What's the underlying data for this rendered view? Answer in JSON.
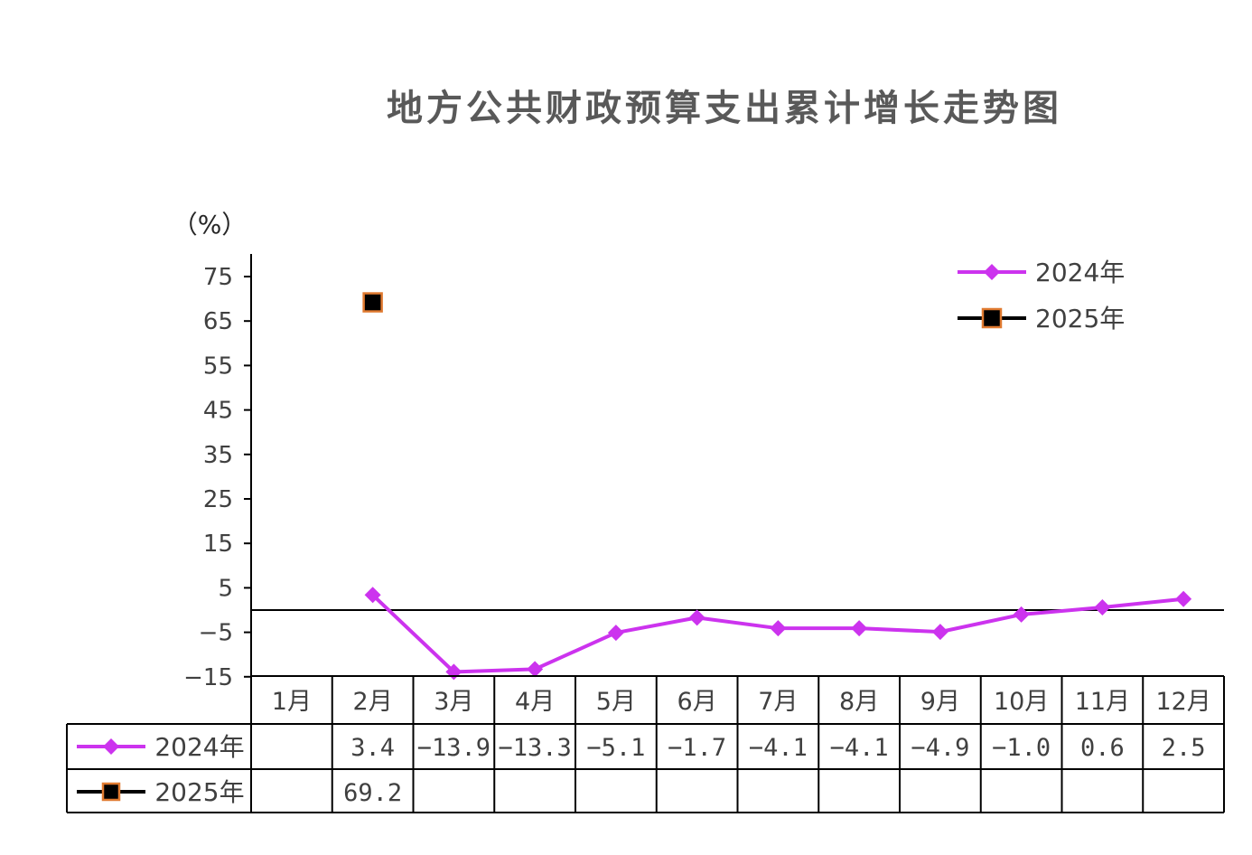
{
  "title": "地方公共财政预算支出累计增长走势图",
  "chart_data": {
    "type": "line",
    "title": "地方公共财政预算支出累计增长走势图",
    "ylabel": "（%）",
    "categories": [
      "1月",
      "2月",
      "3月",
      "4月",
      "5月",
      "6月",
      "7月",
      "8月",
      "9月",
      "10月",
      "11月",
      "12月"
    ],
    "yticks": [
      "75",
      "65",
      "55",
      "45",
      "35",
      "25",
      "15",
      "5",
      "−5",
      "−15"
    ],
    "ylim": [
      -15,
      80
    ],
    "grid": false,
    "legend_position": "top-right",
    "series": [
      {
        "name": "2024年",
        "color": "#cc33ee",
        "marker": "diamond",
        "values": [
          null,
          3.4,
          -13.9,
          -13.3,
          -5.1,
          -1.7,
          -4.1,
          -4.1,
          -4.9,
          -1.0,
          0.6,
          2.5
        ],
        "labels": [
          "",
          "3.4",
          "−13.9",
          "−13.3",
          "−5.1",
          "−1.7",
          "−4.1",
          "−4.1",
          "−4.9",
          "−1.0",
          "0.6",
          "2.5"
        ]
      },
      {
        "name": "2025年",
        "color": "#000000",
        "marker_edge": "#e07a30",
        "marker": "square",
        "values": [
          null,
          69.2,
          null,
          null,
          null,
          null,
          null,
          null,
          null,
          null,
          null,
          null
        ],
        "labels": [
          "",
          "69.2",
          "",
          "",
          "",
          "",
          "",
          "",
          "",
          "",
          "",
          ""
        ]
      }
    ]
  }
}
